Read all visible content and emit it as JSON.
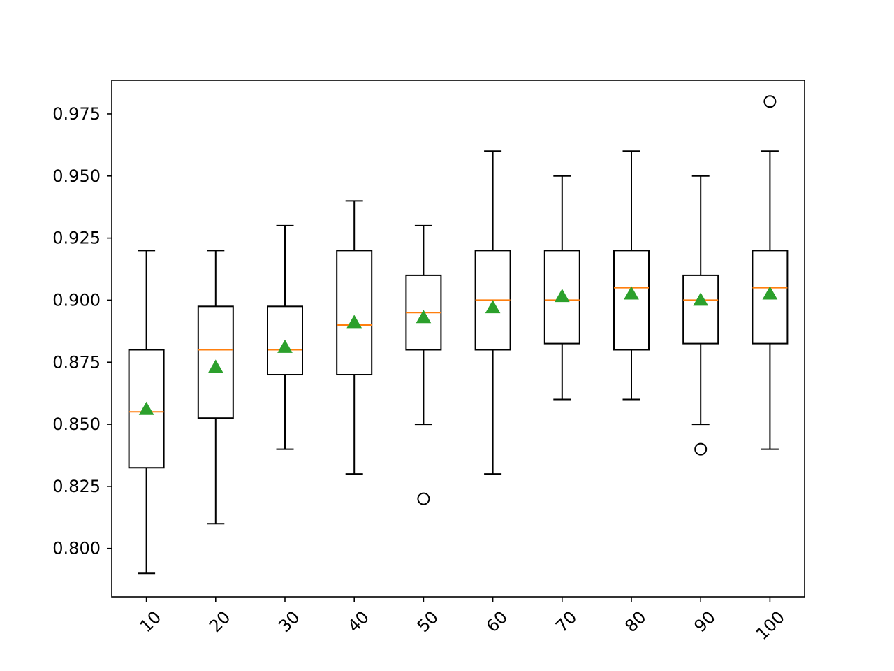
{
  "chart_data": {
    "type": "box",
    "title": "",
    "xlabel": "",
    "ylabel": "",
    "ylim": [
      0.7805,
      0.9885
    ],
    "grid": false,
    "yticks": [
      0.8,
      0.825,
      0.85,
      0.875,
      0.9,
      0.925,
      0.95,
      0.975
    ],
    "ytick_labels": [
      "0.800",
      "0.825",
      "0.850",
      "0.875",
      "0.900",
      "0.925",
      "0.950",
      "0.975"
    ],
    "colors": {
      "box": "#000000",
      "median": "#ff7f0e",
      "mean": "#2ca02c",
      "flier": "#000000"
    },
    "categories": [
      "10",
      "20",
      "30",
      "40",
      "50",
      "60",
      "70",
      "80",
      "90",
      "100"
    ],
    "boxes": [
      {
        "label": "10",
        "whislo": 0.79,
        "q1": 0.8325,
        "median": 0.855,
        "q3": 0.88,
        "whishi": 0.92,
        "mean": 0.856,
        "fliers": []
      },
      {
        "label": "20",
        "whislo": 0.81,
        "q1": 0.8525,
        "median": 0.88,
        "q3": 0.8975,
        "whishi": 0.92,
        "mean": 0.873,
        "fliers": []
      },
      {
        "label": "30",
        "whislo": 0.84,
        "q1": 0.87,
        "median": 0.88,
        "q3": 0.8975,
        "whishi": 0.93,
        "mean": 0.881,
        "fliers": []
      },
      {
        "label": "40",
        "whislo": 0.83,
        "q1": 0.87,
        "median": 0.89,
        "q3": 0.92,
        "whishi": 0.94,
        "mean": 0.891,
        "fliers": []
      },
      {
        "label": "50",
        "whislo": 0.85,
        "q1": 0.88,
        "median": 0.895,
        "q3": 0.91,
        "whishi": 0.93,
        "mean": 0.893,
        "fliers": [
          0.82
        ]
      },
      {
        "label": "60",
        "whislo": 0.83,
        "q1": 0.88,
        "median": 0.9,
        "q3": 0.92,
        "whishi": 0.96,
        "mean": 0.897,
        "fliers": []
      },
      {
        "label": "70",
        "whislo": 0.86,
        "q1": 0.8825,
        "median": 0.9,
        "q3": 0.92,
        "whishi": 0.95,
        "mean": 0.9015,
        "fliers": []
      },
      {
        "label": "80",
        "whislo": 0.86,
        "q1": 0.88,
        "median": 0.905,
        "q3": 0.92,
        "whishi": 0.96,
        "mean": 0.9025,
        "fliers": []
      },
      {
        "label": "90",
        "whislo": 0.85,
        "q1": 0.8825,
        "median": 0.9,
        "q3": 0.91,
        "whishi": 0.95,
        "mean": 0.9,
        "fliers": [
          0.84
        ]
      },
      {
        "label": "100",
        "whislo": 0.84,
        "q1": 0.8825,
        "median": 0.905,
        "q3": 0.92,
        "whishi": 0.96,
        "mean": 0.9025,
        "fliers": [
          0.98
        ]
      }
    ]
  }
}
